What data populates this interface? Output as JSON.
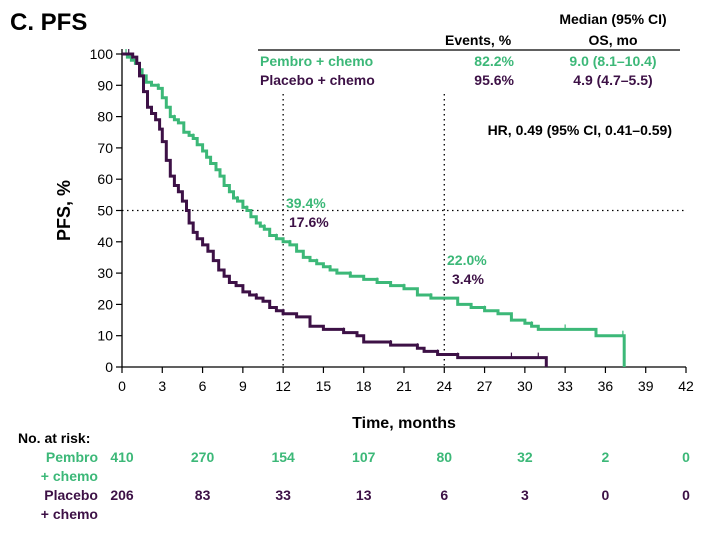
{
  "panel_title": "C. PFS",
  "chart_data": {
    "type": "line",
    "title": "C. PFS",
    "xlabel": "Time, months",
    "ylabel": "PFS, %",
    "xlim": [
      0,
      42
    ],
    "ylim": [
      0,
      100
    ],
    "xticks": [
      0,
      3,
      6,
      9,
      12,
      15,
      18,
      21,
      24,
      27,
      30,
      33,
      36,
      39,
      42
    ],
    "yticks": [
      0,
      10,
      20,
      30,
      40,
      50,
      60,
      70,
      80,
      90,
      100
    ],
    "reference_lines": {
      "y": 50,
      "x": [
        12,
        24
      ]
    },
    "colors": {
      "pembro": "#3cb878",
      "placebo": "#3d1146",
      "text": "#000000"
    },
    "table_header": {
      "events": "Events, %",
      "median_line1": "Median (95% CI)",
      "median_line2": "OS, mo"
    },
    "series": [
      {
        "name": "Pembro + chemo",
        "color": "#3cb878",
        "events": "82.2%",
        "median": "9.0 (8.1–10.4)",
        "points": [
          [
            0,
            100
          ],
          [
            0.3,
            100
          ],
          [
            0.4,
            99
          ],
          [
            0.7,
            98
          ],
          [
            1,
            97
          ],
          [
            1.3,
            95
          ],
          [
            1.5,
            93
          ],
          [
            1.8,
            91
          ],
          [
            2.2,
            90
          ],
          [
            2.7,
            89
          ],
          [
            3.0,
            86
          ],
          [
            3.3,
            83
          ],
          [
            3.6,
            80
          ],
          [
            3.9,
            79
          ],
          [
            4.2,
            78
          ],
          [
            4.6,
            75
          ],
          [
            5.0,
            74
          ],
          [
            5.3,
            73
          ],
          [
            5.6,
            71
          ],
          [
            6.0,
            69
          ],
          [
            6.3,
            67
          ],
          [
            6.6,
            65
          ],
          [
            7.0,
            63
          ],
          [
            7.3,
            61
          ],
          [
            7.6,
            58
          ],
          [
            8.0,
            56
          ],
          [
            8.3,
            54
          ],
          [
            8.6,
            53
          ],
          [
            9.0,
            51
          ],
          [
            9.3,
            50
          ],
          [
            9.6,
            48
          ],
          [
            10.0,
            46
          ],
          [
            10.3,
            45
          ],
          [
            10.6,
            44
          ],
          [
            11.0,
            42
          ],
          [
            11.5,
            41
          ],
          [
            12.0,
            40
          ],
          [
            12.5,
            39
          ],
          [
            13.0,
            37
          ],
          [
            13.5,
            35
          ],
          [
            14.0,
            34
          ],
          [
            14.5,
            33
          ],
          [
            15.0,
            32
          ],
          [
            15.5,
            31
          ],
          [
            16.0,
            30
          ],
          [
            17.0,
            29
          ],
          [
            18.0,
            28
          ],
          [
            19.0,
            27
          ],
          [
            20.0,
            26
          ],
          [
            21.0,
            25
          ],
          [
            22.0,
            23
          ],
          [
            23.0,
            22
          ],
          [
            24.0,
            22
          ],
          [
            25.0,
            20
          ],
          [
            26.0,
            19
          ],
          [
            27.0,
            18
          ],
          [
            28.0,
            17
          ],
          [
            29.0,
            15
          ],
          [
            30.0,
            14
          ],
          [
            30.5,
            13
          ],
          [
            31.0,
            12
          ],
          [
            33.0,
            12
          ],
          [
            34.5,
            12
          ],
          [
            35.3,
            10
          ],
          [
            36.0,
            10
          ],
          [
            37.3,
            10
          ],
          [
            37.4,
            0
          ]
        ],
        "at_risk": [
          410,
          270,
          154,
          107,
          80,
          32,
          2,
          0
        ]
      },
      {
        "name": "Placebo + chemo",
        "color": "#3d1146",
        "events": "95.6%",
        "median": "4.9 (4.7–5.5)",
        "points": [
          [
            0,
            100
          ],
          [
            0.5,
            100
          ],
          [
            0.8,
            99
          ],
          [
            1.1,
            97
          ],
          [
            1.3,
            93
          ],
          [
            1.6,
            88
          ],
          [
            1.9,
            83
          ],
          [
            2.2,
            81
          ],
          [
            2.5,
            79
          ],
          [
            2.8,
            76
          ],
          [
            3.0,
            72
          ],
          [
            3.3,
            66
          ],
          [
            3.6,
            61
          ],
          [
            3.9,
            58
          ],
          [
            4.2,
            56
          ],
          [
            4.5,
            53
          ],
          [
            4.8,
            50
          ],
          [
            5.0,
            46
          ],
          [
            5.3,
            43
          ],
          [
            5.6,
            41
          ],
          [
            6.0,
            39
          ],
          [
            6.4,
            37
          ],
          [
            6.8,
            34
          ],
          [
            7.2,
            31
          ],
          [
            7.6,
            29
          ],
          [
            8.0,
            27
          ],
          [
            8.5,
            26
          ],
          [
            9.0,
            24
          ],
          [
            9.5,
            23
          ],
          [
            10.0,
            22
          ],
          [
            10.5,
            21
          ],
          [
            11.0,
            19
          ],
          [
            11.5,
            18
          ],
          [
            12.0,
            17
          ],
          [
            13.0,
            16
          ],
          [
            14.0,
            13
          ],
          [
            15.0,
            12
          ],
          [
            16.5,
            11
          ],
          [
            17.5,
            10
          ],
          [
            18.0,
            8
          ],
          [
            19.0,
            8
          ],
          [
            20.0,
            7
          ],
          [
            21.0,
            7
          ],
          [
            22.0,
            6
          ],
          [
            22.5,
            5
          ],
          [
            23.5,
            4
          ],
          [
            24.0,
            4
          ],
          [
            25.0,
            3
          ],
          [
            27.0,
            3
          ],
          [
            29.0,
            3
          ],
          [
            30.0,
            3
          ],
          [
            31.0,
            3
          ],
          [
            31.5,
            3
          ],
          [
            31.6,
            0
          ]
        ],
        "at_risk": [
          206,
          83,
          33,
          13,
          6,
          3,
          0,
          0
        ]
      }
    ],
    "annotations": [
      {
        "text": "39.4%",
        "series": 0,
        "x": 12
      },
      {
        "text": "17.6%",
        "series": 1,
        "x": 12
      },
      {
        "text": "22.0%",
        "series": 0,
        "x": 24
      },
      {
        "text": "3.4%",
        "series": 1,
        "x": 24
      }
    ],
    "hr_text": "HR, 0.49 (95% CI, 0.41–0.59)",
    "at_risk_title": "No. at risk:",
    "at_risk_labels": [
      [
        "Pembro",
        "+ chemo"
      ],
      [
        "Placebo",
        "+ chemo"
      ]
    ],
    "at_risk_times": [
      0,
      6,
      12,
      18,
      24,
      30,
      36,
      42
    ]
  }
}
